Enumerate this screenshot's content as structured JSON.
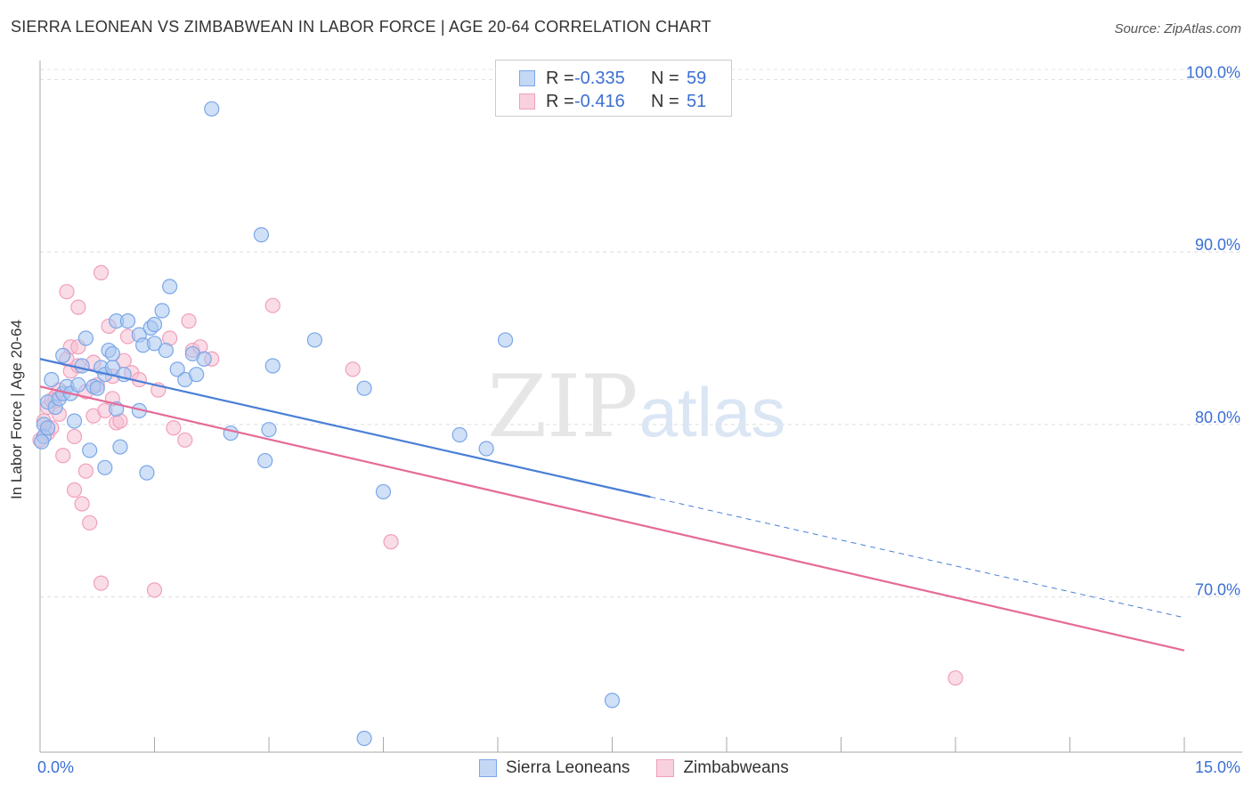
{
  "header": {
    "title": "SIERRA LEONEAN VS ZIMBABWEAN IN LABOR FORCE | AGE 20-64 CORRELATION CHART",
    "source": "Source: ZipAtlas.com"
  },
  "watermark": {
    "zip": "ZIP",
    "atlas": "atlas"
  },
  "legend": {
    "rows": [
      {
        "r_label": "R =",
        "r_value": "-0.335",
        "n_label": "N =",
        "n_value": "59",
        "color": "#7aa7e8"
      },
      {
        "r_label": "R =",
        "r_value": "-0.416",
        "n_label": "N =",
        "n_value": "51",
        "color": "#f0a0bb"
      }
    ]
  },
  "bottom_legend": [
    {
      "label": "Sierra Leoneans",
      "color": "#7aa7e8"
    },
    {
      "label": "Zimbabweans",
      "color": "#f0a0bb"
    }
  ],
  "chart_data": {
    "type": "scatter",
    "title": "SIERRA LEONEAN VS ZIMBABWEAN IN LABOR FORCE | AGE 20-64 CORRELATION CHART",
    "xlabel": "",
    "ylabel": "In Labor Force | Age 20-64",
    "xlim": [
      0,
      15
    ],
    "ylim": [
      61,
      101
    ],
    "x_tick_labels": [
      "0.0%",
      "15.0%"
    ],
    "y_ticks": [
      70,
      80,
      90,
      100
    ],
    "y_tick_labels": [
      "70.0%",
      "80.0%",
      "90.0%",
      "100.0%"
    ],
    "grid": true,
    "legend_position": "top-center",
    "colors": {
      "blue": "#4a7fd6",
      "pink": "#e56a98",
      "blue_fill": "#a9c6f0",
      "pink_fill": "#f6bfd1"
    },
    "series": [
      {
        "name": "Sierra Leoneans",
        "color": "#4a7fd6",
        "trend": {
          "x": [
            0,
            8.0
          ],
          "y": [
            83.8,
            75.8
          ],
          "dashed_extension": {
            "x": [
              8.0,
              15.0
            ],
            "y": [
              75.8,
              68.8
            ]
          }
        },
        "points": [
          [
            0.05,
            80.0
          ],
          [
            0.05,
            79.3
          ],
          [
            0.1,
            81.3
          ],
          [
            0.1,
            79.8
          ],
          [
            0.15,
            82.6
          ],
          [
            0.2,
            81.0
          ],
          [
            0.25,
            81.5
          ],
          [
            0.3,
            81.8
          ],
          [
            0.3,
            84.0
          ],
          [
            0.35,
            82.2
          ],
          [
            0.4,
            81.8
          ],
          [
            0.45,
            80.2
          ],
          [
            0.5,
            82.3
          ],
          [
            0.55,
            83.4
          ],
          [
            0.6,
            85.0
          ],
          [
            0.65,
            78.5
          ],
          [
            0.7,
            82.2
          ],
          [
            0.75,
            82.1
          ],
          [
            0.8,
            83.3
          ],
          [
            0.85,
            82.9
          ],
          [
            0.85,
            77.5
          ],
          [
            0.9,
            84.3
          ],
          [
            0.95,
            83.3
          ],
          [
            0.95,
            84.1
          ],
          [
            1.0,
            86.0
          ],
          [
            1.0,
            80.9
          ],
          [
            1.05,
            78.7
          ],
          [
            1.1,
            82.9
          ],
          [
            1.15,
            86.0
          ],
          [
            1.3,
            85.2
          ],
          [
            1.3,
            80.8
          ],
          [
            1.35,
            84.6
          ],
          [
            1.4,
            77.2
          ],
          [
            1.45,
            85.6
          ],
          [
            1.5,
            84.7
          ],
          [
            1.5,
            85.8
          ],
          [
            1.6,
            86.6
          ],
          [
            1.65,
            84.3
          ],
          [
            1.7,
            88.0
          ],
          [
            1.8,
            83.2
          ],
          [
            1.9,
            82.6
          ],
          [
            2.0,
            84.1
          ],
          [
            2.05,
            82.9
          ],
          [
            2.15,
            83.8
          ],
          [
            2.25,
            98.3
          ],
          [
            2.5,
            79.5
          ],
          [
            2.9,
            91.0
          ],
          [
            2.95,
            77.9
          ],
          [
            3.0,
            79.7
          ],
          [
            3.05,
            83.4
          ],
          [
            3.6,
            84.9
          ],
          [
            4.25,
            82.1
          ],
          [
            4.5,
            76.1
          ],
          [
            5.5,
            79.4
          ],
          [
            5.85,
            78.6
          ],
          [
            6.1,
            84.9
          ],
          [
            7.5,
            64.0
          ],
          [
            4.25,
            61.8
          ],
          [
            0.02,
            79.0
          ]
        ]
      },
      {
        "name": "Zimbabweans",
        "color": "#e56a98",
        "trend": {
          "x": [
            0,
            15.0
          ],
          "y": [
            82.2,
            66.9
          ]
        },
        "points": [
          [
            0.05,
            80.2
          ],
          [
            0.1,
            81.0
          ],
          [
            0.1,
            79.5
          ],
          [
            0.15,
            79.8
          ],
          [
            0.2,
            81.6
          ],
          [
            0.25,
            82.0
          ],
          [
            0.3,
            78.2
          ],
          [
            0.35,
            83.8
          ],
          [
            0.35,
            87.7
          ],
          [
            0.4,
            84.5
          ],
          [
            0.4,
            83.1
          ],
          [
            0.45,
            79.3
          ],
          [
            0.45,
            76.2
          ],
          [
            0.5,
            83.4
          ],
          [
            0.5,
            86.8
          ],
          [
            0.55,
            75.4
          ],
          [
            0.6,
            77.3
          ],
          [
            0.6,
            81.9
          ],
          [
            0.65,
            74.3
          ],
          [
            0.7,
            83.6
          ],
          [
            0.7,
            80.5
          ],
          [
            0.75,
            82.3
          ],
          [
            0.8,
            70.8
          ],
          [
            0.8,
            88.8
          ],
          [
            0.85,
            80.8
          ],
          [
            0.9,
            85.7
          ],
          [
            0.95,
            82.8
          ],
          [
            0.95,
            81.5
          ],
          [
            1.0,
            80.1
          ],
          [
            1.05,
            80.2
          ],
          [
            1.1,
            83.7
          ],
          [
            1.15,
            85.1
          ],
          [
            1.2,
            83.0
          ],
          [
            1.3,
            82.6
          ],
          [
            1.5,
            70.4
          ],
          [
            1.55,
            82.0
          ],
          [
            1.7,
            85.0
          ],
          [
            1.75,
            79.8
          ],
          [
            1.9,
            79.1
          ],
          [
            1.95,
            86.0
          ],
          [
            2.0,
            84.3
          ],
          [
            2.1,
            84.5
          ],
          [
            2.25,
            83.8
          ],
          [
            3.05,
            86.9
          ],
          [
            4.1,
            83.2
          ],
          [
            4.6,
            73.2
          ],
          [
            12.0,
            65.3
          ],
          [
            0.5,
            84.5
          ],
          [
            0.25,
            80.6
          ],
          [
            0.15,
            81.4
          ],
          [
            0.0,
            79.1
          ]
        ]
      }
    ]
  }
}
